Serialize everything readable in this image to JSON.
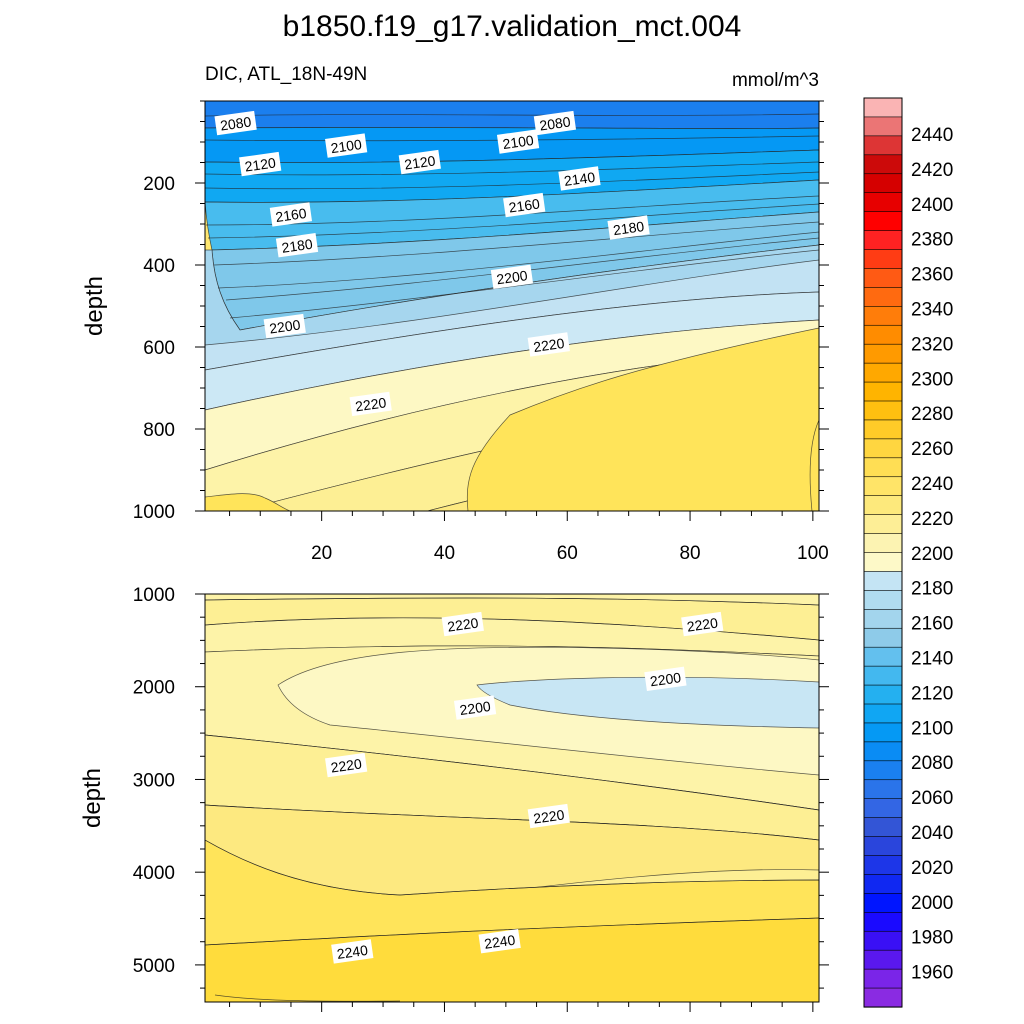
{
  "title": "b1850.f19_g17.validation_mct.004",
  "subtitle_left": "DIC, ATL_18N-49N",
  "subtitle_right": "mmol/m^3",
  "chart_data": [
    {
      "type": "contour",
      "panel": "upper",
      "variable": "DIC",
      "region": "ATL_18N-49N",
      "units": "mmol/m^3",
      "xlabel": "",
      "ylabel": "depth",
      "xlim": [
        1,
        101
      ],
      "ylim": [
        0,
        1000
      ],
      "y_reversed": true,
      "xticks": [
        20,
        40,
        60,
        80,
        100
      ],
      "yticks": [
        200,
        400,
        600,
        800,
        1000
      ],
      "contour_interval": 5,
      "contour_labels": [
        {
          "text": "2080",
          "x": 6,
          "y": 55
        },
        {
          "text": "2080",
          "x": 58,
          "y": 55
        },
        {
          "text": "2100",
          "x": 24,
          "y": 110
        },
        {
          "text": "2100",
          "x": 52,
          "y": 100
        },
        {
          "text": "2120",
          "x": 10,
          "y": 155
        },
        {
          "text": "2120",
          "x": 36,
          "y": 150
        },
        {
          "text": "2140",
          "x": 62,
          "y": 190
        },
        {
          "text": "2160",
          "x": 15,
          "y": 278
        },
        {
          "text": "2160",
          "x": 53,
          "y": 255
        },
        {
          "text": "2180",
          "x": 16,
          "y": 353
        },
        {
          "text": "2180",
          "x": 70,
          "y": 310
        },
        {
          "text": "2200",
          "x": 14,
          "y": 550
        },
        {
          "text": "2200",
          "x": 51,
          "y": 430
        },
        {
          "text": "2220",
          "x": 28,
          "y": 740
        },
        {
          "text": "2220",
          "x": 57,
          "y": 595
        }
      ]
    },
    {
      "type": "contour",
      "panel": "lower",
      "variable": "DIC",
      "xlabel": "",
      "ylabel": "depth",
      "xlim": [
        1,
        101
      ],
      "ylim": [
        1000,
        5400
      ],
      "y_reversed": true,
      "yticks": [
        1000,
        2000,
        3000,
        4000,
        5000
      ],
      "contour_interval": 5,
      "contour_labels": [
        {
          "text": "2220",
          "x": 43,
          "y": 1330
        },
        {
          "text": "2220",
          "x": 82,
          "y": 1330
        },
        {
          "text": "2200",
          "x": 76,
          "y": 1920
        },
        {
          "text": "2200",
          "x": 45,
          "y": 2230
        },
        {
          "text": "2220",
          "x": 24,
          "y": 2850
        },
        {
          "text": "2220",
          "x": 57,
          "y": 3400
        },
        {
          "text": "2240",
          "x": 25,
          "y": 4860
        },
        {
          "text": "2240",
          "x": 49,
          "y": 4750
        }
      ]
    }
  ],
  "colorbar": {
    "labels": [
      "2440",
      "2420",
      "2400",
      "2380",
      "2360",
      "2340",
      "2320",
      "2300",
      "2280",
      "2260",
      "2240",
      "2220",
      "2200",
      "2180",
      "2160",
      "2140",
      "2120",
      "2100",
      "2080",
      "2060",
      "2040",
      "2020",
      "2000",
      "1980",
      "1960"
    ],
    "colors": [
      "#fab4b4",
      "#eb7575",
      "#dd3535",
      "#cc0a0a",
      "#d50000",
      "#e70000",
      "#ff0000",
      "#ff2222",
      "#ff3c14",
      "#ff5a14",
      "#ff6a10",
      "#ff7d0a",
      "#ff8c00",
      "#ff9a00",
      "#ffa800",
      "#ffb400",
      "#ffc010",
      "#ffcb28",
      "#ffd640",
      "#ffde54",
      "#ffe468",
      "#fde97c",
      "#fdee96",
      "#fcf3b2",
      "#fdf9c8",
      "#c4e4f4",
      "#b0dcf0",
      "#a3d5ed",
      "#8ecbe9",
      "#63c0ee",
      "#43b8ef",
      "#24b0f0",
      "#10a6f3",
      "#0599f4",
      "#0a8cf4",
      "#1a80f0",
      "#2a74ea",
      "#3366e4",
      "#3355d6",
      "#2a45dc",
      "#1d36e8",
      "#1028f2",
      "#0015ff",
      "#1a0aff",
      "#3a10f5",
      "#5a18ee",
      "#7a25e8",
      "#8a2be2"
    ]
  }
}
